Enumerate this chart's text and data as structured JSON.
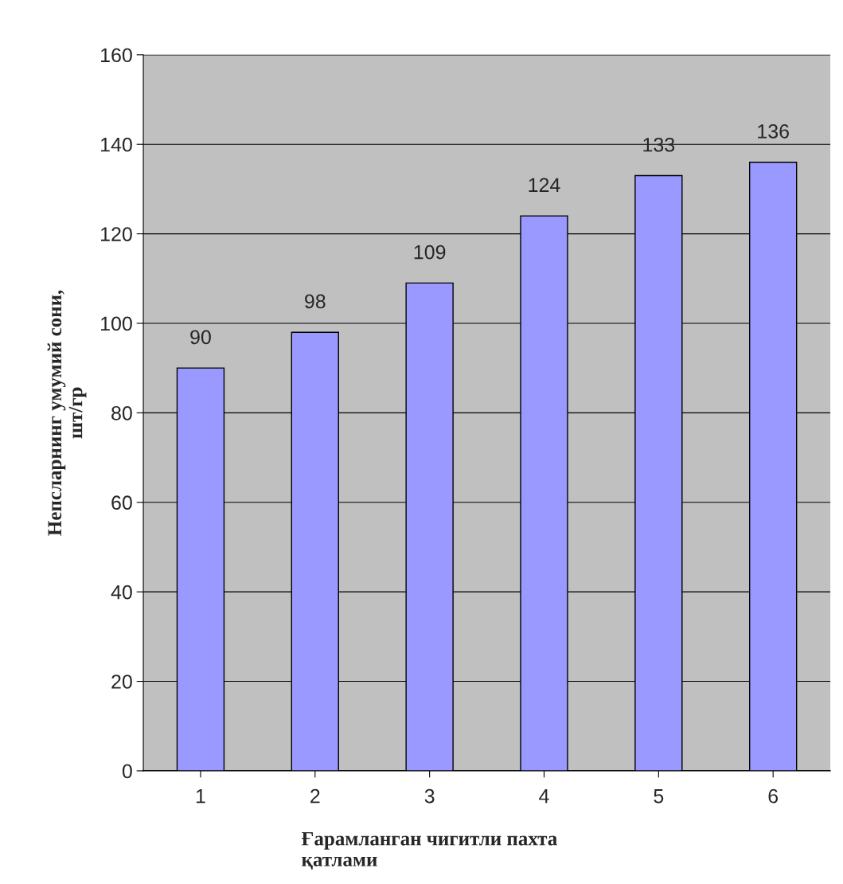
{
  "chart_data": {
    "type": "bar",
    "categories": [
      "1",
      "2",
      "3",
      "4",
      "5",
      "6"
    ],
    "values": [
      90,
      98,
      109,
      124,
      133,
      136
    ],
    "color": "#9999ff",
    "xlabel": "Ғарамланган чигитли пахта\nқатлами",
    "ylabel": "Непсларнинг умумий сони,\nшт/гр",
    "ylim": [
      0,
      160
    ],
    "yticks": [
      0,
      20,
      40,
      60,
      80,
      100,
      120,
      140,
      160
    ],
    "grid": "y",
    "data_labels": true,
    "legend": false
  }
}
